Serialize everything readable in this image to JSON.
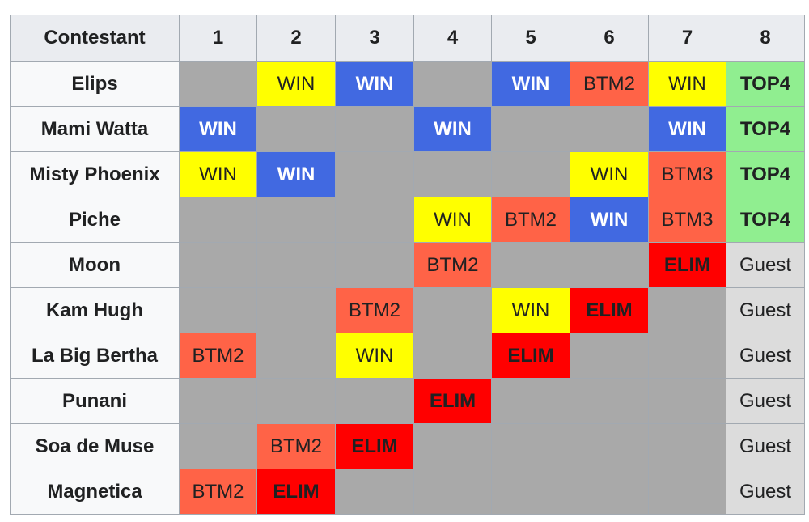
{
  "headers": [
    "Contestant",
    "1",
    "2",
    "3",
    "4",
    "5",
    "6",
    "7",
    "8"
  ],
  "rows": [
    {
      "name": "Elips",
      "cells": [
        [
          "na",
          ""
        ],
        [
          "win",
          "WIN"
        ],
        [
          "bwin",
          "WIN"
        ],
        [
          "na",
          ""
        ],
        [
          "bwin",
          "WIN"
        ],
        [
          "btm",
          "BTM2"
        ],
        [
          "win",
          "WIN"
        ],
        [
          "top",
          "TOP4"
        ]
      ]
    },
    {
      "name": "Mami Watta",
      "cells": [
        [
          "bwin",
          "WIN"
        ],
        [
          "na",
          ""
        ],
        [
          "na",
          ""
        ],
        [
          "bwin",
          "WIN"
        ],
        [
          "na",
          ""
        ],
        [
          "na",
          ""
        ],
        [
          "bwin",
          "WIN"
        ],
        [
          "top",
          "TOP4"
        ]
      ]
    },
    {
      "name": "Misty Phoenix",
      "cells": [
        [
          "win",
          "WIN"
        ],
        [
          "bwin",
          "WIN"
        ],
        [
          "na",
          ""
        ],
        [
          "na",
          ""
        ],
        [
          "na",
          ""
        ],
        [
          "win",
          "WIN"
        ],
        [
          "btm",
          "BTM3"
        ],
        [
          "top",
          "TOP4"
        ]
      ]
    },
    {
      "name": "Piche",
      "cells": [
        [
          "na",
          ""
        ],
        [
          "na",
          ""
        ],
        [
          "na",
          ""
        ],
        [
          "win",
          "WIN"
        ],
        [
          "btm",
          "BTM2"
        ],
        [
          "bwin",
          "WIN"
        ],
        [
          "btm",
          "BTM3"
        ],
        [
          "top",
          "TOP4"
        ]
      ]
    },
    {
      "name": "Moon",
      "cells": [
        [
          "na",
          ""
        ],
        [
          "na",
          ""
        ],
        [
          "na",
          ""
        ],
        [
          "btm",
          "BTM2"
        ],
        [
          "na",
          ""
        ],
        [
          "na",
          ""
        ],
        [
          "elim",
          "ELIM"
        ],
        [
          "guest",
          "Guest"
        ]
      ]
    },
    {
      "name": "Kam Hugh",
      "cells": [
        [
          "na",
          ""
        ],
        [
          "na",
          ""
        ],
        [
          "btm",
          "BTM2"
        ],
        [
          "na",
          ""
        ],
        [
          "win",
          "WIN"
        ],
        [
          "elim",
          "ELIM"
        ],
        [
          "na",
          ""
        ],
        [
          "guest",
          "Guest"
        ]
      ]
    },
    {
      "name": "La Big Bertha",
      "cells": [
        [
          "btm",
          "BTM2"
        ],
        [
          "na",
          ""
        ],
        [
          "win",
          "WIN"
        ],
        [
          "na",
          ""
        ],
        [
          "elim",
          "ELIM"
        ],
        [
          "na",
          ""
        ],
        [
          "na",
          ""
        ],
        [
          "guest",
          "Guest"
        ]
      ]
    },
    {
      "name": "Punani",
      "cells": [
        [
          "na",
          ""
        ],
        [
          "na",
          ""
        ],
        [
          "na",
          ""
        ],
        [
          "elim",
          "ELIM"
        ],
        [
          "na",
          ""
        ],
        [
          "na",
          ""
        ],
        [
          "na",
          ""
        ],
        [
          "guest",
          "Guest"
        ]
      ]
    },
    {
      "name": "Soa de Muse",
      "cells": [
        [
          "na",
          ""
        ],
        [
          "btm",
          "BTM2"
        ],
        [
          "elim",
          "ELIM"
        ],
        [
          "na",
          ""
        ],
        [
          "na",
          ""
        ],
        [
          "na",
          ""
        ],
        [
          "na",
          ""
        ],
        [
          "guest",
          "Guest"
        ]
      ]
    },
    {
      "name": "Magnetica",
      "cells": [
        [
          "btm",
          "BTM2"
        ],
        [
          "elim",
          "ELIM"
        ],
        [
          "na",
          ""
        ],
        [
          "na",
          ""
        ],
        [
          "na",
          ""
        ],
        [
          "na",
          ""
        ],
        [
          "na",
          ""
        ],
        [
          "guest",
          "Guest"
        ]
      ]
    }
  ]
}
